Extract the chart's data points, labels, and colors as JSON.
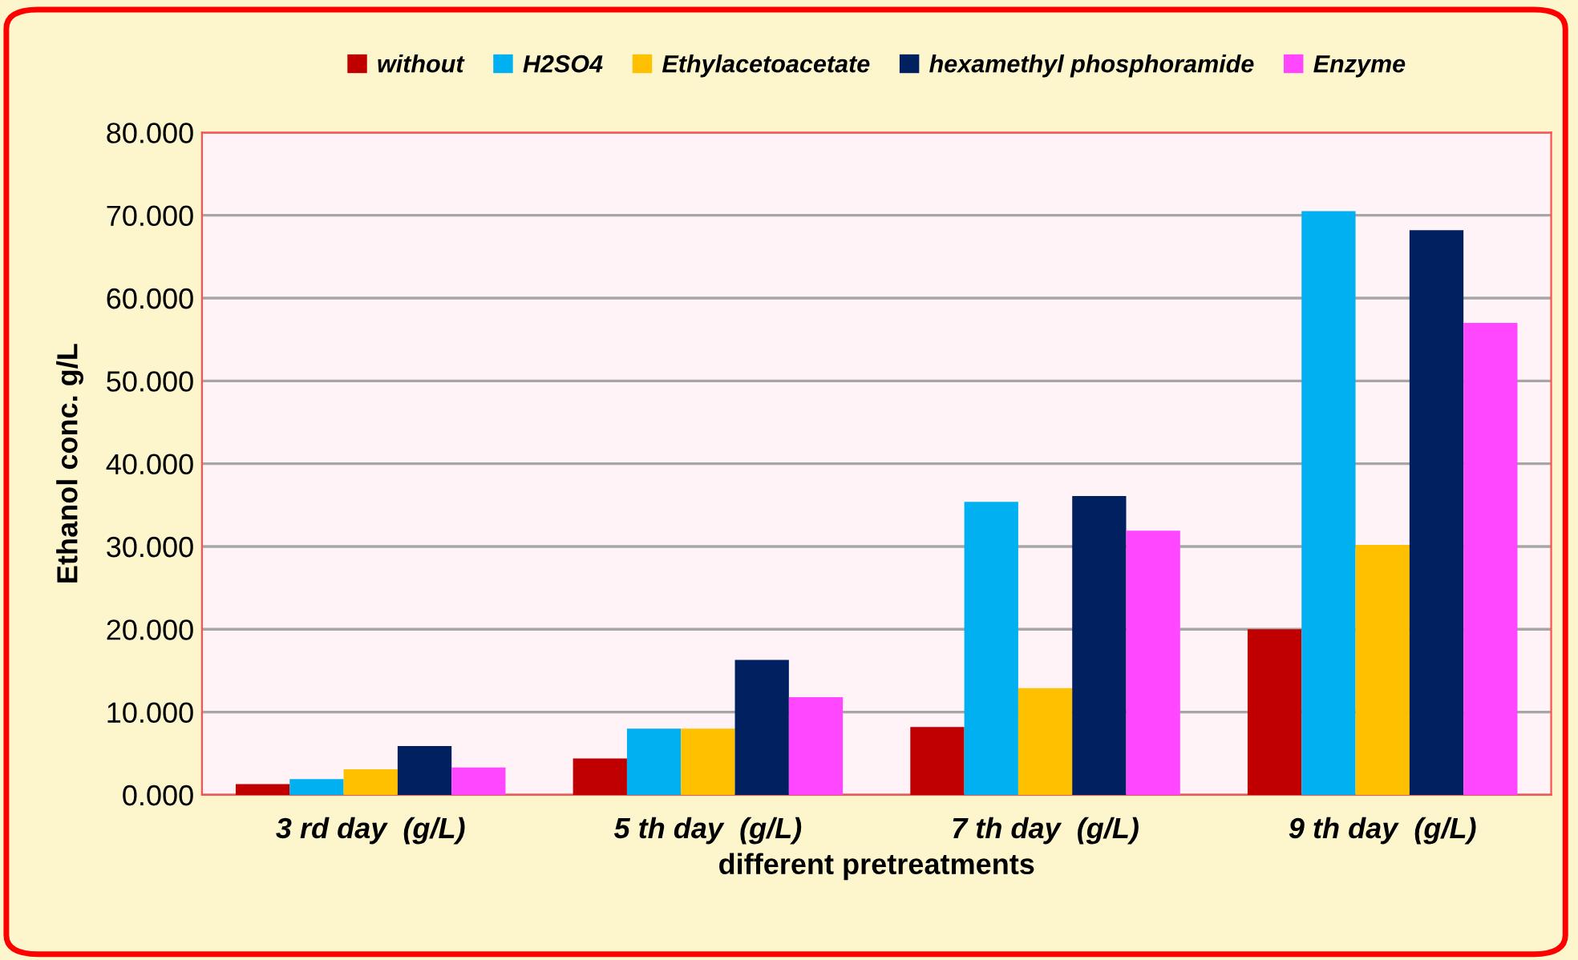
{
  "chart_data": {
    "type": "bar",
    "xlabel": "different pretreatments",
    "ylabel": "Ethanol conc. g/L",
    "categories": [
      "3 rd day  (g/L)",
      "5 th day  (g/L)",
      "7 th day  (g/L)",
      "9 th day  (g/L)"
    ],
    "series": [
      {
        "name": "without",
        "color": "#c00000",
        "values": [
          1.3,
          4.4,
          8.2,
          20.0
        ]
      },
      {
        "name": "H2SO4",
        "color": "#00b0f0",
        "values": [
          1.9,
          8.0,
          35.4,
          70.5
        ]
      },
      {
        "name": "Ethylacetoacetate",
        "color": "#ffc000",
        "values": [
          3.1,
          8.0,
          12.9,
          30.2
        ]
      },
      {
        "name": "hexamethyl phosphoramide",
        "color": "#002060",
        "values": [
          5.9,
          16.3,
          36.1,
          68.2
        ]
      },
      {
        "name": "Enzyme",
        "color": "#ff47ff",
        "values": [
          3.3,
          11.8,
          31.9,
          57.0
        ]
      }
    ],
    "ylim": [
      0,
      80
    ],
    "yticks": [
      {
        "value": 0,
        "label": "0.000"
      },
      {
        "value": 10,
        "label": "10.000"
      },
      {
        "value": 20,
        "label": "20.000"
      },
      {
        "value": 30,
        "label": "30.000"
      },
      {
        "value": 40,
        "label": "40.000"
      },
      {
        "value": 50,
        "label": "50.000"
      },
      {
        "value": 60,
        "label": "60.000"
      },
      {
        "value": 70,
        "label": "70.000"
      },
      {
        "value": 80,
        "label": "80.000"
      }
    ],
    "grid": "y",
    "legend": "top"
  }
}
